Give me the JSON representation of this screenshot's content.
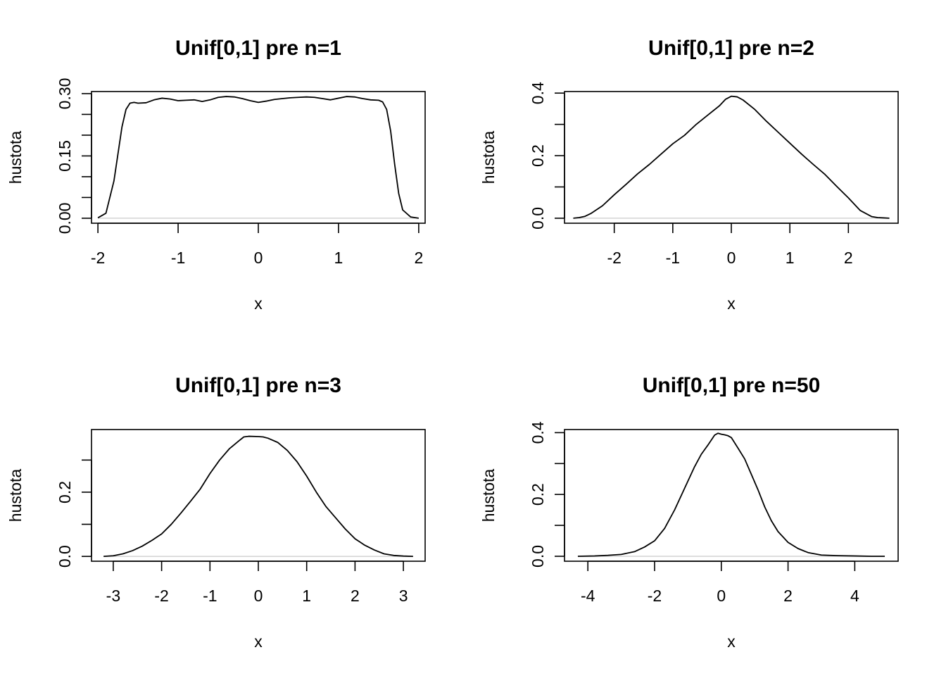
{
  "chart_data": [
    {
      "type": "line",
      "title": "Unif[0,1] pre n=1",
      "xlabel": "x",
      "ylabel": "hustota",
      "xlim": [
        -2.08,
        2.08
      ],
      "ylim": [
        -0.012,
        0.305
      ],
      "xticks": [
        -2,
        -1,
        0,
        1,
        2
      ],
      "xtick_labels": [
        "-2",
        "-1",
        "0",
        "1",
        "2"
      ],
      "yticks": [
        0,
        0.05,
        0.1,
        0.15,
        0.2,
        0.25,
        0.3
      ],
      "ytick_labels": [
        "0.00",
        "",
        "",
        "0.15",
        "",
        "",
        "0.30"
      ],
      "baseline": 0,
      "series": [
        {
          "x": [
            -2.0,
            -1.9,
            -1.8,
            -1.7,
            -1.65,
            -1.6,
            -1.55,
            -1.5,
            -1.4,
            -1.3,
            -1.2,
            -1.1,
            -1.0,
            -0.9,
            -0.8,
            -0.7,
            -0.6,
            -0.5,
            -0.4,
            -0.3,
            -0.2,
            -0.1,
            0.0,
            0.1,
            0.2,
            0.3,
            0.4,
            0.5,
            0.6,
            0.7,
            0.8,
            0.9,
            1.0,
            1.1,
            1.2,
            1.3,
            1.4,
            1.5,
            1.55,
            1.6,
            1.65,
            1.7,
            1.75,
            1.8,
            1.9,
            2.0
          ],
          "y": [
            0.001,
            0.012,
            0.09,
            0.22,
            0.262,
            0.277,
            0.279,
            0.277,
            0.278,
            0.285,
            0.289,
            0.287,
            0.283,
            0.284,
            0.285,
            0.281,
            0.285,
            0.291,
            0.293,
            0.292,
            0.288,
            0.283,
            0.279,
            0.282,
            0.286,
            0.288,
            0.29,
            0.291,
            0.292,
            0.291,
            0.288,
            0.285,
            0.289,
            0.293,
            0.292,
            0.288,
            0.285,
            0.284,
            0.28,
            0.262,
            0.21,
            0.13,
            0.06,
            0.02,
            0.003,
            0.0
          ]
        }
      ]
    },
    {
      "type": "line",
      "title": "Unif[0,1] pre n=2",
      "xlabel": "x",
      "ylabel": "hustota",
      "xlim": [
        -2.85,
        2.85
      ],
      "ylim": [
        -0.016,
        0.405
      ],
      "xticks": [
        -2,
        -1,
        0,
        1,
        2
      ],
      "xtick_labels": [
        "-2",
        "-1",
        "0",
        "1",
        "2"
      ],
      "yticks": [
        0,
        0.1,
        0.2,
        0.3,
        0.4
      ],
      "ytick_labels": [
        "0.0",
        "",
        "0.2",
        "",
        "0.4"
      ],
      "baseline": 0,
      "series": [
        {
          "x": [
            -2.7,
            -2.6,
            -2.5,
            -2.4,
            -2.2,
            -2.0,
            -1.8,
            -1.6,
            -1.4,
            -1.2,
            -1.0,
            -0.8,
            -0.6,
            -0.4,
            -0.2,
            -0.1,
            0.0,
            0.1,
            0.2,
            0.4,
            0.6,
            0.8,
            1.0,
            1.2,
            1.4,
            1.6,
            1.8,
            2.0,
            2.2,
            2.4,
            2.5,
            2.6,
            2.7
          ],
          "y": [
            0.0,
            0.002,
            0.006,
            0.015,
            0.04,
            0.075,
            0.108,
            0.142,
            0.172,
            0.205,
            0.238,
            0.265,
            0.3,
            0.33,
            0.36,
            0.38,
            0.39,
            0.388,
            0.378,
            0.348,
            0.31,
            0.275,
            0.24,
            0.205,
            0.172,
            0.14,
            0.102,
            0.065,
            0.025,
            0.005,
            0.002,
            0.001,
            0.0
          ]
        }
      ]
    },
    {
      "type": "line",
      "title": "Unif[0,1] pre n=3",
      "xlabel": "x",
      "ylabel": "hustota",
      "xlim": [
        -3.45,
        3.45
      ],
      "ylim": [
        -0.015,
        0.395
      ],
      "xticks": [
        -3,
        -2,
        -1,
        0,
        1,
        2,
        3
      ],
      "xtick_labels": [
        "-3",
        "-2",
        "-1",
        "0",
        "1",
        "2",
        "3"
      ],
      "yticks": [
        0,
        0.1,
        0.2,
        0.3
      ],
      "ytick_labels": [
        "0.0",
        "",
        "0.2",
        ""
      ],
      "baseline": 0,
      "series": [
        {
          "x": [
            -3.2,
            -3.0,
            -2.8,
            -2.6,
            -2.4,
            -2.2,
            -2.0,
            -1.8,
            -1.6,
            -1.4,
            -1.2,
            -1.0,
            -0.8,
            -0.6,
            -0.4,
            -0.3,
            -0.2,
            0.0,
            0.1,
            0.2,
            0.4,
            0.6,
            0.8,
            1.0,
            1.2,
            1.4,
            1.6,
            1.8,
            2.0,
            2.2,
            2.4,
            2.6,
            2.8,
            3.0,
            3.2
          ],
          "y": [
            0.0,
            0.002,
            0.008,
            0.018,
            0.032,
            0.05,
            0.07,
            0.1,
            0.135,
            0.172,
            0.21,
            0.258,
            0.3,
            0.335,
            0.36,
            0.372,
            0.374,
            0.373,
            0.372,
            0.368,
            0.355,
            0.33,
            0.295,
            0.25,
            0.2,
            0.155,
            0.12,
            0.085,
            0.055,
            0.035,
            0.02,
            0.008,
            0.003,
            0.001,
            0.0
          ]
        }
      ]
    },
    {
      "type": "line",
      "title": "Unif[0,1] pre n=50",
      "xlabel": "x",
      "ylabel": "hustota",
      "xlim": [
        -4.7,
        5.3
      ],
      "ylim": [
        -0.016,
        0.41
      ],
      "xticks": [
        -4,
        -2,
        0,
        2,
        4
      ],
      "xtick_labels": [
        "-4",
        "-2",
        "0",
        "2",
        "4"
      ],
      "yticks": [
        0,
        0.1,
        0.2,
        0.3,
        0.4
      ],
      "ytick_labels": [
        "0.0",
        "",
        "0.2",
        "",
        "0.4"
      ],
      "baseline": 0,
      "series": [
        {
          "x": [
            -4.3,
            -3.8,
            -3.4,
            -3.0,
            -2.6,
            -2.3,
            -2.0,
            -1.7,
            -1.4,
            -1.1,
            -0.8,
            -0.6,
            -0.4,
            -0.2,
            -0.1,
            0.0,
            0.1,
            0.2,
            0.3,
            0.5,
            0.7,
            0.9,
            1.1,
            1.3,
            1.5,
            1.7,
            2.0,
            2.3,
            2.6,
            3.0,
            3.5,
            4.0,
            4.5,
            4.9
          ],
          "y": [
            0.0,
            0.001,
            0.003,
            0.006,
            0.015,
            0.03,
            0.05,
            0.09,
            0.15,
            0.22,
            0.29,
            0.33,
            0.36,
            0.392,
            0.398,
            0.395,
            0.393,
            0.39,
            0.384,
            0.35,
            0.315,
            0.265,
            0.215,
            0.16,
            0.115,
            0.08,
            0.045,
            0.025,
            0.012,
            0.004,
            0.002,
            0.001,
            0.0,
            0.0
          ]
        }
      ]
    }
  ]
}
